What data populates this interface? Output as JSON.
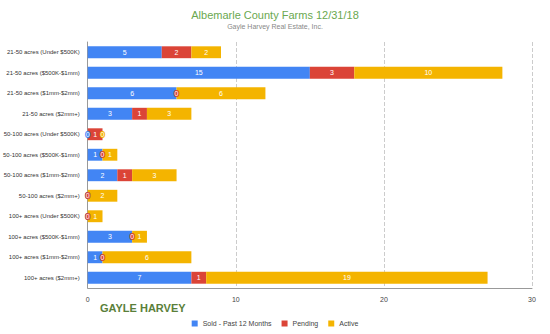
{
  "chart_data": {
    "type": "bar",
    "title": "Albemarle County Farms 12/31/18",
    "subtitle": "Gayle Harvey Real Estate, Inc.",
    "annotations": [
      "GAYLE HARVEY"
    ],
    "orientation": "horizontal",
    "stacked": true,
    "data_labels": true,
    "grid": true,
    "legend": "bottom",
    "categories": [
      "21-50 acres (Under $500K)",
      "21-50 acres ($500K-$1mm)",
      "21-50 acres ($1mm-$2mm)",
      "21-50 acres ($2mm+)",
      "50-100 acres (Under $500K)",
      "50-100 acres ($500K-$1mm)",
      "50-100 acres ($1mm-$2mm)",
      "50-100 acres ($2mm+)",
      "100+ acres (Under $500K)",
      "100+ acres ($500K-$1mm)",
      "100+ acres ($1mm-$2mm)",
      "100+ acres ($2mm+)"
    ],
    "series": [
      {
        "name": "Sold - Past 12 Months",
        "color": "#4285f4",
        "values": [
          5,
          15,
          6,
          3,
          0,
          1,
          2,
          0,
          0,
          3,
          1,
          7
        ]
      },
      {
        "name": "Pending",
        "color": "#db4437",
        "values": [
          2,
          3,
          0,
          1,
          1,
          0,
          1,
          0,
          0,
          0,
          0,
          1
        ]
      },
      {
        "name": "Active",
        "color": "#f4b400",
        "values": [
          2,
          10,
          6,
          3,
          0,
          1,
          3,
          2,
          1,
          1,
          6,
          19
        ]
      }
    ],
    "xlim": [
      0,
      30
    ],
    "xticks": [
      0,
      10,
      20,
      30
    ]
  }
}
